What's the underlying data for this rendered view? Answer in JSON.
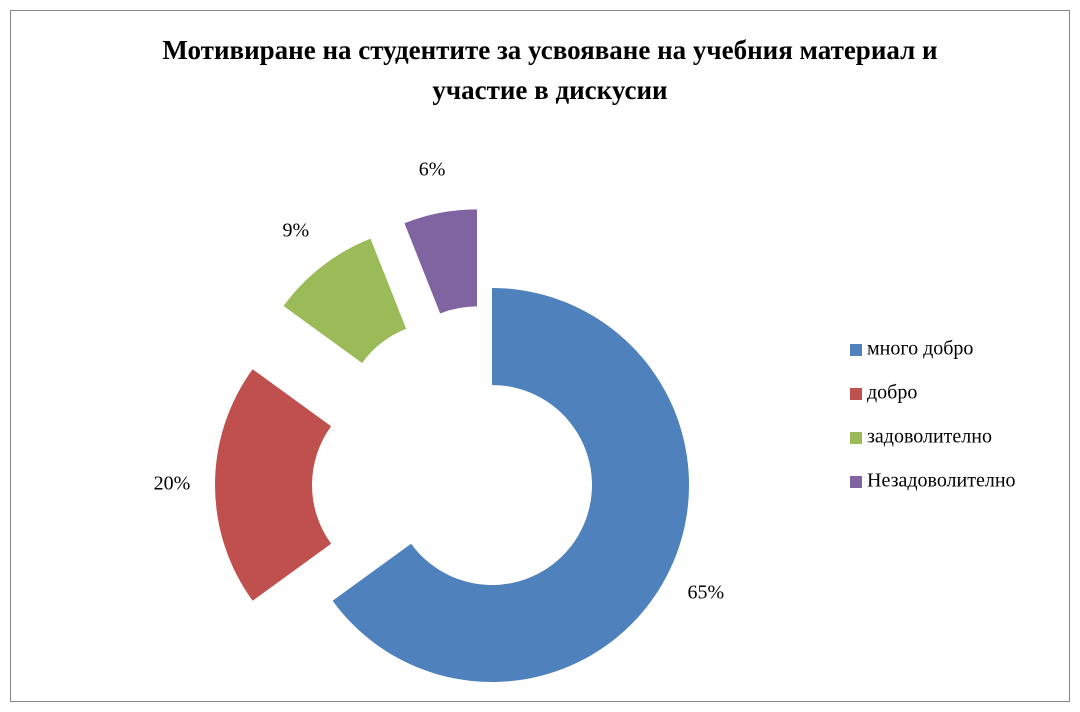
{
  "chart_data": {
    "type": "donut",
    "title": "Мотивиране на студентите за усвояване на учебния материал и участие в дискусии",
    "categories": [
      "много добро",
      "добро",
      "задоволително",
      "Незадоволително"
    ],
    "values": [
      65,
      20,
      9,
      6
    ],
    "value_labels": [
      "65%",
      "20%",
      "9%",
      "6%"
    ],
    "colors": [
      "#4f81bd",
      "#c0504d",
      "#9bbb59",
      "#8064a2"
    ],
    "legend": "right"
  }
}
